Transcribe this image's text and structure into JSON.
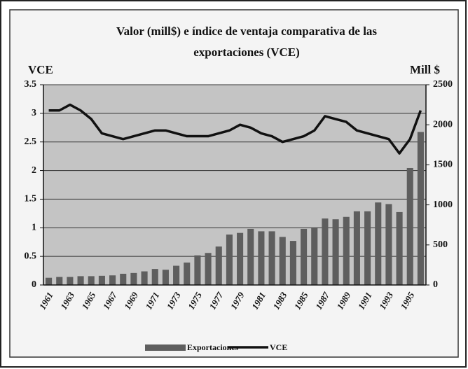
{
  "chart_data": {
    "type": "bar_line",
    "title": [
      "Valor (mill$) e índice de ventaja comparativa de las",
      "exportaciones (VCE)"
    ],
    "y_label": "VCE",
    "y2_label": "Mill $",
    "categories": [
      "1961",
      null,
      "1963",
      null,
      "1965",
      null,
      "1967",
      null,
      "1969",
      null,
      "1971",
      null,
      "1973",
      null,
      "1975",
      null,
      "1977",
      null,
      "1979",
      null,
      "1981",
      null,
      "1983",
      null,
      "1985",
      null,
      "1987",
      null,
      "1989",
      null,
      "1991",
      null,
      "1993",
      null,
      "1995",
      null
    ],
    "series": [
      {
        "name": "Exportaciones",
        "type": "bar",
        "axis": "y2",
        "color": "#5e5e5e",
        "values": [
          90,
          100,
          100,
          110,
          110,
          115,
          120,
          140,
          150,
          170,
          200,
          190,
          240,
          280,
          370,
          400,
          480,
          630,
          650,
          700,
          670,
          670,
          600,
          550,
          700,
          720,
          830,
          820,
          850,
          920,
          920,
          1030,
          1010,
          910,
          1460,
          1910
        ]
      },
      {
        "name": "VCE",
        "type": "line",
        "axis": "y",
        "color": "#111111",
        "values": [
          3.05,
          3.05,
          3.15,
          3.05,
          2.9,
          2.65,
          2.6,
          2.55,
          2.6,
          2.65,
          2.7,
          2.7,
          2.65,
          2.6,
          2.6,
          2.6,
          2.65,
          2.7,
          2.8,
          2.75,
          2.65,
          2.6,
          2.5,
          2.55,
          2.6,
          2.7,
          2.95,
          2.9,
          2.85,
          2.7,
          2.65,
          2.6,
          2.55,
          2.3,
          2.55,
          3.05
        ]
      }
    ],
    "ylim": [
      0,
      3.5
    ],
    "yticks": [
      0,
      0.5,
      1,
      1.5,
      2,
      2.5,
      3,
      3.5
    ],
    "y2lim": [
      0,
      2500
    ],
    "y2ticks": [
      0,
      500,
      1000,
      1500,
      2000,
      2500
    ],
    "grid": true,
    "legend": "bottom"
  }
}
